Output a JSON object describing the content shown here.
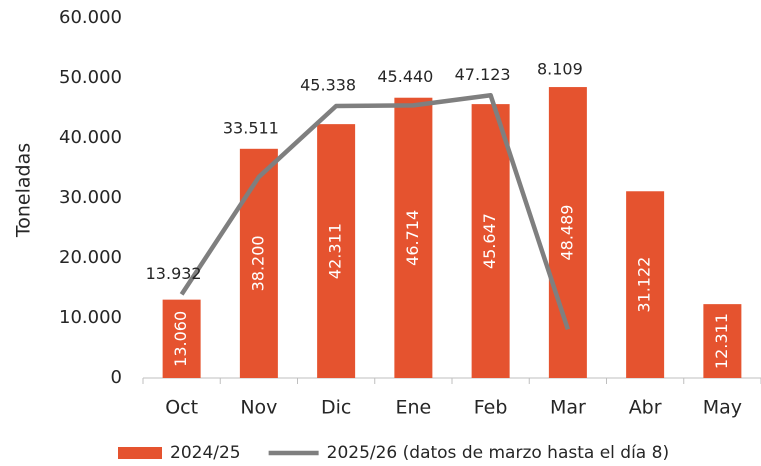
{
  "chart_data": {
    "type": "bar_line",
    "y_label": "Toneladas",
    "categories": [
      "Oct",
      "Nov",
      "Dic",
      "Ene",
      "Feb",
      "Mar",
      "Abr",
      "May"
    ],
    "series": [
      {
        "name": "2024/25",
        "type": "bar",
        "color": "#e5532f",
        "values": [
          13060,
          38200,
          42311,
          46714,
          45647,
          48489,
          31122,
          12311
        ],
        "value_labels": [
          "13.060",
          "38.200",
          "42.311",
          "46.714",
          "45.647",
          "48.489",
          "31.122",
          "12.311"
        ]
      },
      {
        "name": "2025/26 (datos de marzo hasta el día 8)",
        "type": "line",
        "color": "#7f7f7f",
        "values": [
          13932,
          33511,
          45338,
          45440,
          47123,
          8109,
          null,
          null
        ],
        "value_labels": [
          "13.932",
          "33.511",
          "45.338",
          "45.440",
          "47.123",
          "8.109",
          null,
          null
        ]
      }
    ],
    "ylim": [
      0,
      60000
    ],
    "yticks": [
      0,
      {
        "value": 10000,
        "label": "10.000"
      },
      {
        "value": 20000,
        "label": "20.000"
      },
      {
        "value": 30000,
        "label": "30.000"
      },
      {
        "value": 40000,
        "label": "40.000"
      },
      {
        "value": 50000,
        "label": "50.000"
      },
      {
        "value": 60000,
        "label": "60.000"
      }
    ],
    "grid": false,
    "legend": "bottom"
  }
}
